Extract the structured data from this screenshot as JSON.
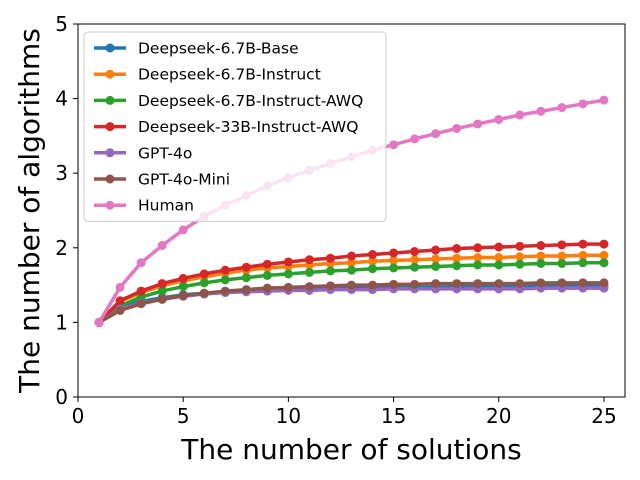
{
  "chart_data": {
    "type": "line",
    "title": "",
    "xlabel": "The number of solutions",
    "ylabel": "The number of algorithms",
    "xlim": [
      0,
      26
    ],
    "ylim": [
      0,
      5
    ],
    "xticks": [
      0,
      5,
      10,
      15,
      20,
      25
    ],
    "yticks": [
      0,
      1,
      2,
      3,
      4,
      5
    ],
    "grid": false,
    "legend_position": "top-left",
    "x": [
      1,
      2,
      3,
      4,
      5,
      6,
      7,
      8,
      9,
      10,
      11,
      12,
      13,
      14,
      15,
      16,
      17,
      18,
      19,
      20,
      21,
      22,
      23,
      24,
      25
    ],
    "series": [
      {
        "name": "Deepseek-6.7B-Base",
        "color": "#1f77b4",
        "values": [
          1.0,
          1.2,
          1.28,
          1.33,
          1.37,
          1.39,
          1.41,
          1.42,
          1.43,
          1.44,
          1.45,
          1.45,
          1.46,
          1.46,
          1.47,
          1.47,
          1.47,
          1.48,
          1.48,
          1.48,
          1.48,
          1.49,
          1.49,
          1.49,
          1.49
        ]
      },
      {
        "name": "Deepseek-6.7B-Instruct",
        "color": "#ff7f0e",
        "values": [
          1.0,
          1.28,
          1.4,
          1.49,
          1.56,
          1.61,
          1.66,
          1.7,
          1.73,
          1.75,
          1.77,
          1.79,
          1.8,
          1.82,
          1.83,
          1.84,
          1.85,
          1.86,
          1.87,
          1.87,
          1.88,
          1.89,
          1.89,
          1.9,
          1.9
        ]
      },
      {
        "name": "Deepseek-6.7B-Instruct-AWQ",
        "color": "#2ca02c",
        "values": [
          1.0,
          1.22,
          1.34,
          1.42,
          1.48,
          1.53,
          1.57,
          1.6,
          1.63,
          1.65,
          1.67,
          1.69,
          1.7,
          1.72,
          1.73,
          1.74,
          1.75,
          1.76,
          1.77,
          1.77,
          1.78,
          1.79,
          1.79,
          1.8,
          1.8
        ]
      },
      {
        "name": "Deepseek-33B-Instruct-AWQ",
        "color": "#d62728",
        "values": [
          1.0,
          1.29,
          1.42,
          1.52,
          1.59,
          1.65,
          1.7,
          1.74,
          1.78,
          1.81,
          1.84,
          1.86,
          1.89,
          1.91,
          1.93,
          1.95,
          1.97,
          1.99,
          2.0,
          2.01,
          2.02,
          2.03,
          2.04,
          2.05,
          2.05
        ]
      },
      {
        "name": "GPT-4o",
        "color": "#9467bd",
        "values": [
          1.0,
          1.18,
          1.26,
          1.31,
          1.35,
          1.38,
          1.4,
          1.41,
          1.42,
          1.43,
          1.43,
          1.44,
          1.44,
          1.44,
          1.45,
          1.45,
          1.45,
          1.45,
          1.45,
          1.45,
          1.45,
          1.46,
          1.46,
          1.46,
          1.46
        ]
      },
      {
        "name": "GPT-4o-Mini",
        "color": "#8c564b",
        "values": [
          1.0,
          1.16,
          1.25,
          1.31,
          1.36,
          1.39,
          1.42,
          1.44,
          1.46,
          1.47,
          1.48,
          1.49,
          1.5,
          1.5,
          1.51,
          1.51,
          1.52,
          1.52,
          1.52,
          1.52,
          1.52,
          1.53,
          1.53,
          1.53,
          1.53
        ]
      },
      {
        "name": "Human",
        "color": "#e377c2",
        "values": [
          1.0,
          1.47,
          1.8,
          2.03,
          2.24,
          2.42,
          2.57,
          2.7,
          2.83,
          2.94,
          3.04,
          3.13,
          3.22,
          3.31,
          3.38,
          3.46,
          3.53,
          3.6,
          3.66,
          3.72,
          3.78,
          3.83,
          3.88,
          3.93,
          3.98
        ]
      }
    ]
  }
}
